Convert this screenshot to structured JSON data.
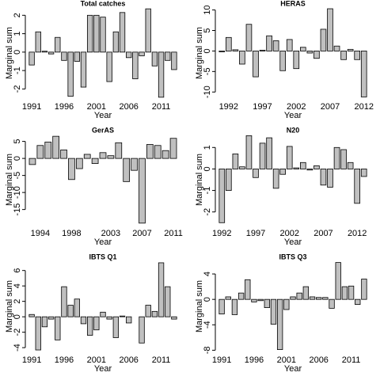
{
  "chart_data": [
    {
      "type": "bar",
      "title": "Total catches",
      "x_label": "Year",
      "y_label": "Marginal sum",
      "color": "#c0c0c0",
      "categories": [
        "1991",
        null,
        null,
        null,
        null,
        "1996",
        null,
        null,
        null,
        null,
        "2001",
        null,
        null,
        null,
        null,
        "2006",
        null,
        null,
        null,
        null,
        "2011",
        null,
        null
      ],
      "values": [
        -0.7,
        1.1,
        0.05,
        -0.1,
        0.8,
        -0.45,
        -2.4,
        -0.5,
        -1.9,
        2.0,
        2.0,
        1.9,
        -1.6,
        1.1,
        2.15,
        -0.3,
        -1.45,
        -0.2,
        2.35,
        -0.75,
        -2.45,
        -0.45,
        -0.95
      ],
      "ylim": [
        -2.5,
        2.4
      ],
      "yticks": [
        -2,
        -1,
        0,
        1,
        2
      ]
    },
    {
      "type": "bar",
      "title": "HERAS",
      "x_label": "Year",
      "y_label": "Marginal sum",
      "color": "#c0c0c0",
      "categories": [
        null,
        "1992",
        null,
        null,
        null,
        null,
        "1997",
        null,
        null,
        null,
        null,
        "2002",
        null,
        null,
        null,
        null,
        "2007",
        null,
        null,
        null,
        null,
        "2012"
      ],
      "values": [
        -0.2,
        3.3,
        0.3,
        -3.2,
        6.5,
        -6.3,
        0.2,
        3.7,
        2.5,
        -4.8,
        2.8,
        -4.3,
        0.9,
        -0.5,
        -1.8,
        5.3,
        10.3,
        1.2,
        -2.1,
        0.4,
        -2.1,
        -11.2
      ],
      "ylim": [
        -11.5,
        10.5
      ],
      "yticks": [
        -10,
        -5,
        0,
        5,
        10
      ]
    },
    {
      "type": "bar",
      "title": "GerAS",
      "x_label": "Year",
      "y_label": "Marginal sum",
      "color": "#c0c0c0",
      "categories": [
        null,
        "1994",
        null,
        null,
        null,
        "1998",
        null,
        null,
        null,
        null,
        "2003",
        null,
        null,
        null,
        "2007",
        null,
        null,
        null,
        "2011"
      ],
      "values": [
        -1.8,
        3.8,
        4.8,
        6.5,
        2.5,
        -6.2,
        -3.0,
        1.2,
        -1.5,
        1.7,
        0.8,
        4.6,
        -6.8,
        -3.5,
        -19,
        4.1,
        3.8,
        2.3,
        5.9
      ],
      "ylim": [
        -19.5,
        7
      ],
      "yticks": [
        -15,
        -10,
        -5,
        0,
        5
      ]
    },
    {
      "type": "bar",
      "title": "N20",
      "x_label": "Year",
      "y_label": "Marginal sum",
      "color": "#c0c0c0",
      "categories": [
        "1992",
        null,
        null,
        null,
        null,
        "1997",
        null,
        null,
        null,
        null,
        "2002",
        null,
        null,
        null,
        null,
        "2007",
        null,
        null,
        null,
        null,
        "2012",
        null
      ],
      "values": [
        -2.5,
        -1.0,
        0.7,
        0.1,
        1.55,
        -0.4,
        1.2,
        1.45,
        -0.9,
        -0.25,
        1.05,
        0.05,
        0.3,
        -0.05,
        0.15,
        -0.75,
        -0.85,
        1.0,
        0.9,
        0.3,
        -1.6,
        -0.35
      ],
      "ylim": [
        -2.6,
        1.6
      ],
      "yticks": [
        -2,
        -1,
        0,
        1
      ]
    },
    {
      "type": "bar",
      "title": "IBTS Q1",
      "x_label": "Year",
      "y_label": "Marginal sum",
      "color": "#c0c0c0",
      "categories": [
        "1991",
        null,
        null,
        null,
        null,
        "1996",
        null,
        null,
        null,
        null,
        "2001",
        null,
        null,
        null,
        null,
        "2006",
        null,
        null,
        null,
        null,
        "2011",
        null,
        null
      ],
      "values": [
        0.3,
        -4.3,
        -1.3,
        -0.3,
        -3.0,
        3.9,
        1.5,
        2.3,
        -0.9,
        -2.4,
        -1.7,
        0.6,
        -0.3,
        -2.7,
        0.1,
        -0.8,
        0,
        -3.4,
        1.5,
        0.7,
        7.0,
        3.9,
        -0.3
      ],
      "ylim": [
        -4.5,
        7.2
      ],
      "yticks": [
        -4,
        -2,
        0,
        2,
        4,
        6
      ]
    },
    {
      "type": "bar",
      "title": "IBTS Q3",
      "x_label": "Year",
      "y_label": "Marginal sum",
      "color": "#c0c0c0",
      "categories": [
        "1991",
        null,
        null,
        null,
        null,
        "1996",
        null,
        null,
        null,
        null,
        "2001",
        null,
        null,
        null,
        null,
        "2006",
        null,
        null,
        null,
        null,
        "2011",
        null,
        null
      ],
      "values": [
        -2.3,
        0.4,
        -2.4,
        1.0,
        3.1,
        -0.4,
        -0.2,
        -1.3,
        -3.9,
        -7.9,
        -1.6,
        0.4,
        1.0,
        2.0,
        0.4,
        0.3,
        0.3,
        -1.4,
        5.8,
        2.0,
        2.1,
        -0.8,
        3.2
      ],
      "ylim": [
        -8.2,
        6
      ],
      "yticks": [
        -8,
        -4,
        0,
        4
      ]
    }
  ]
}
